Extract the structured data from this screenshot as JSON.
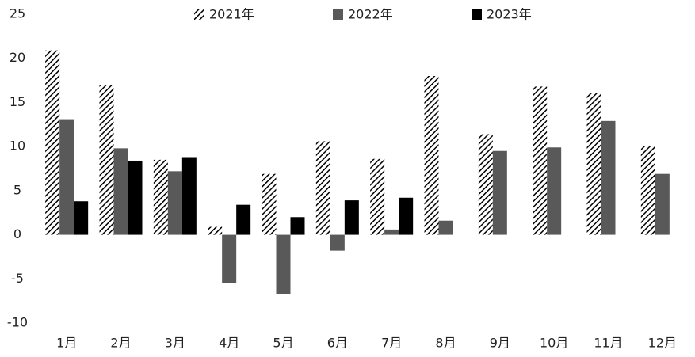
{
  "chart_data": {
    "type": "bar",
    "categories": [
      "1月",
      "2月",
      "3月",
      "4月",
      "5月",
      "6月",
      "7月",
      "8月",
      "9月",
      "10月",
      "11月",
      "12月"
    ],
    "series": [
      {
        "name": "2021年",
        "color": "#000000",
        "hatch": true,
        "values": [
          20.9,
          17.0,
          8.5,
          0.9,
          6.9,
          10.6,
          8.6,
          18.0,
          11.4,
          16.8,
          16.1,
          10.1
        ]
      },
      {
        "name": "2022年",
        "color": "#595959",
        "hatch": false,
        "values": [
          13.1,
          9.8,
          7.2,
          -5.5,
          -6.7,
          -1.8,
          0.6,
          1.6,
          9.5,
          9.9,
          12.9,
          6.9
        ]
      },
      {
        "name": "2023年",
        "color": "#000000",
        "hatch": false,
        "values": [
          3.8,
          8.4,
          8.8,
          3.4,
          2.0,
          3.9,
          4.2,
          null,
          null,
          null,
          null,
          null
        ]
      }
    ],
    "ylim": [
      -10,
      25
    ],
    "yticks": [
      -10,
      -5,
      0,
      5,
      10,
      15,
      20,
      25
    ],
    "grid": false,
    "legend": "top"
  }
}
